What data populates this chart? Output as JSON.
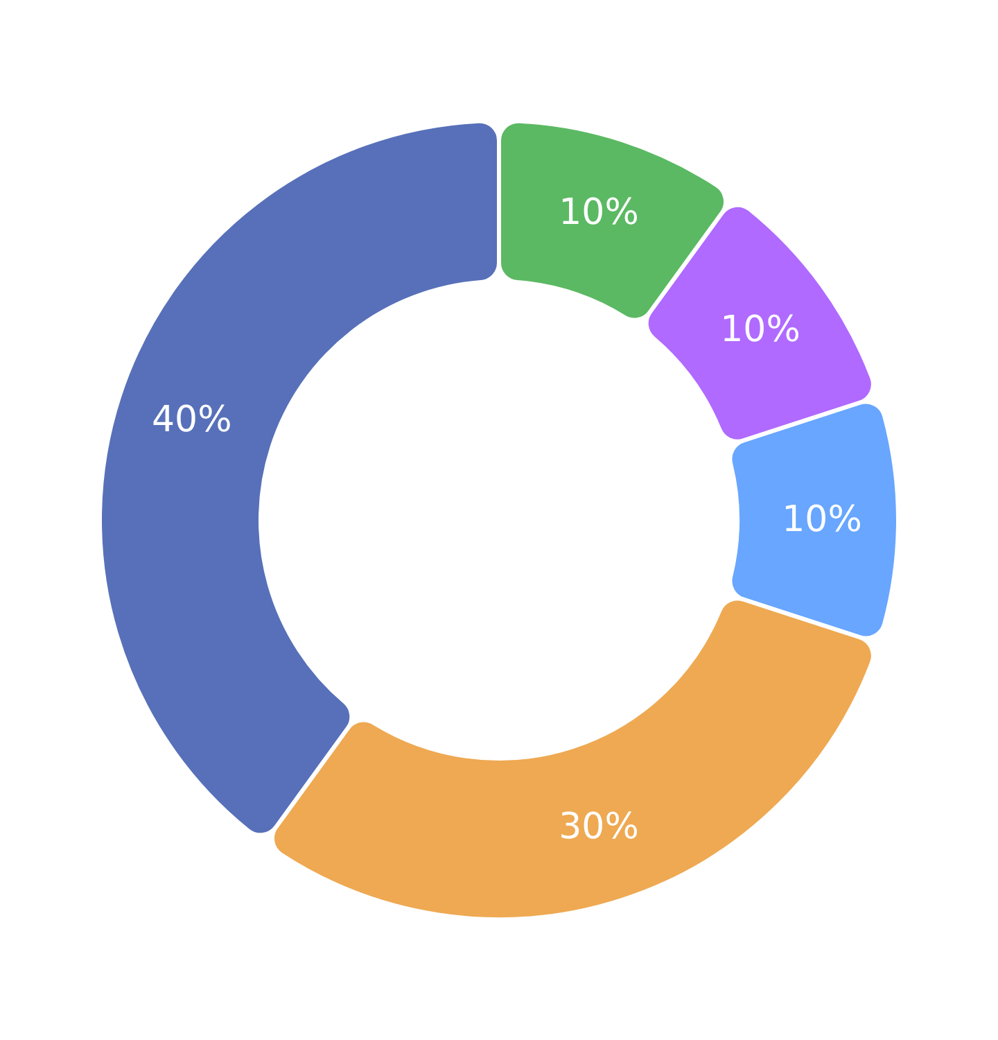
{
  "chart_data": {
    "type": "donut",
    "categories": [
      null,
      null,
      null,
      null,
      null
    ],
    "values": [
      10,
      10,
      10,
      30,
      40
    ],
    "colors": [
      "#5bb963",
      "#b06aff",
      "#68a6ff",
      "#eea952",
      "#5770b9"
    ],
    "value_labels": [
      "10%",
      "10%",
      "10%",
      "30%",
      "40%"
    ]
  }
}
